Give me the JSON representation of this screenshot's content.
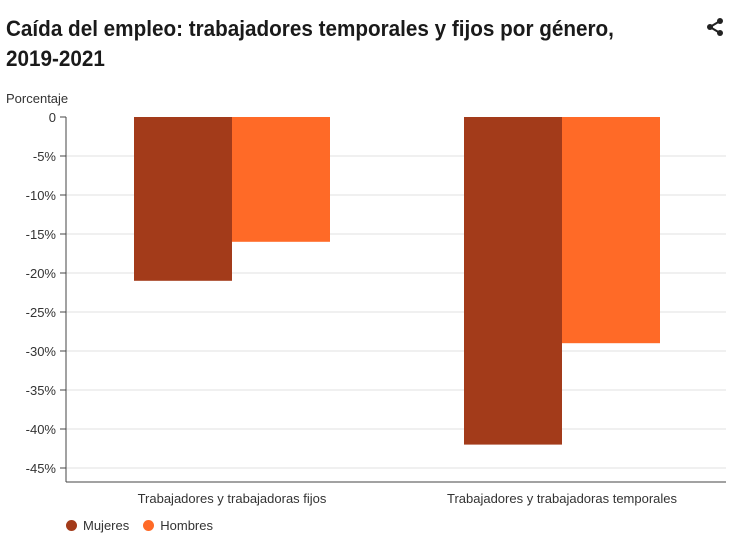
{
  "header": {
    "title": "Caída del empleo: trabajadores temporales y fijos por género, 2019-2021",
    "share_icon": "share-icon"
  },
  "chart_data": {
    "type": "bar",
    "title": "Caída del empleo: trabajadores temporales y fijos por género, 2019-2021",
    "ylabel": "Porcentaje",
    "xlabel": "",
    "ylim": [
      -45,
      0
    ],
    "yticks": [
      0,
      -5,
      -10,
      -15,
      -20,
      -25,
      -30,
      -35,
      -40,
      -45
    ],
    "ytick_labels": [
      "0",
      "-5%",
      "-10%",
      "-15%",
      "-20%",
      "-25%",
      "-30%",
      "-35%",
      "-40%",
      "-45%"
    ],
    "categories": [
      "Trabajadores y trabajadoras fijos",
      "Trabajadores y trabajadoras temporales"
    ],
    "series": [
      {
        "name": "Mujeres",
        "color": "#a33b1a",
        "values": [
          -21,
          -42
        ]
      },
      {
        "name": "Hombres",
        "color": "#ff6a27",
        "values": [
          -16,
          -29
        ]
      }
    ],
    "grid": true,
    "legend_position": "bottom-left"
  }
}
